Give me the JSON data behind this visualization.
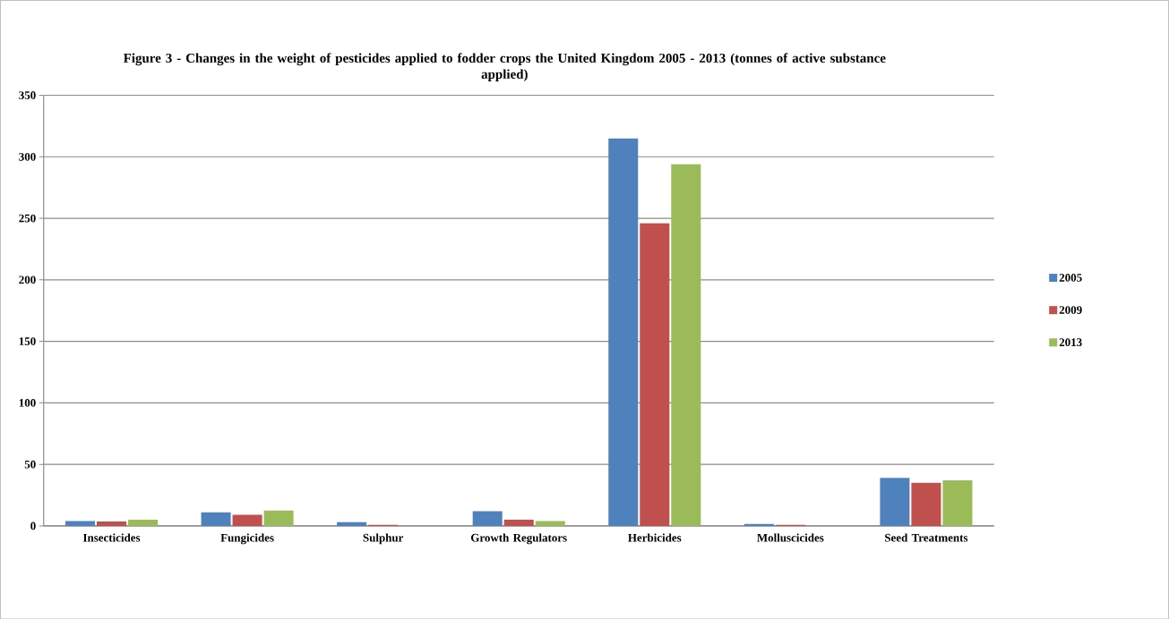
{
  "chart_data": {
    "type": "bar",
    "title": "Figure 3 - Changes in the weight of pesticides applied to fodder crops the United Kingdom 2005 - 2013 (tonnes of active substance applied)",
    "categories": [
      "Insecticides",
      "Fungicides",
      "Sulphur",
      "Growth Regulators",
      "Herbicides",
      "Molluscicides",
      "Seed Treatments"
    ],
    "series": [
      {
        "name": "2005",
        "color": "#4f81bd",
        "values": [
          4,
          11,
          3,
          12,
          315,
          1.5,
          39
        ]
      },
      {
        "name": "2009",
        "color": "#c0504d",
        "values": [
          3.5,
          9,
          0.8,
          5,
          246,
          0.8,
          35
        ]
      },
      {
        "name": "2013",
        "color": "#9bbb59",
        "values": [
          5,
          12.5,
          0,
          4,
          294,
          0,
          37
        ]
      }
    ],
    "ylim": [
      0,
      350
    ],
    "yticks": [
      0,
      50,
      100,
      150,
      200,
      250,
      300,
      350
    ],
    "grid": "y",
    "legend": "right"
  }
}
